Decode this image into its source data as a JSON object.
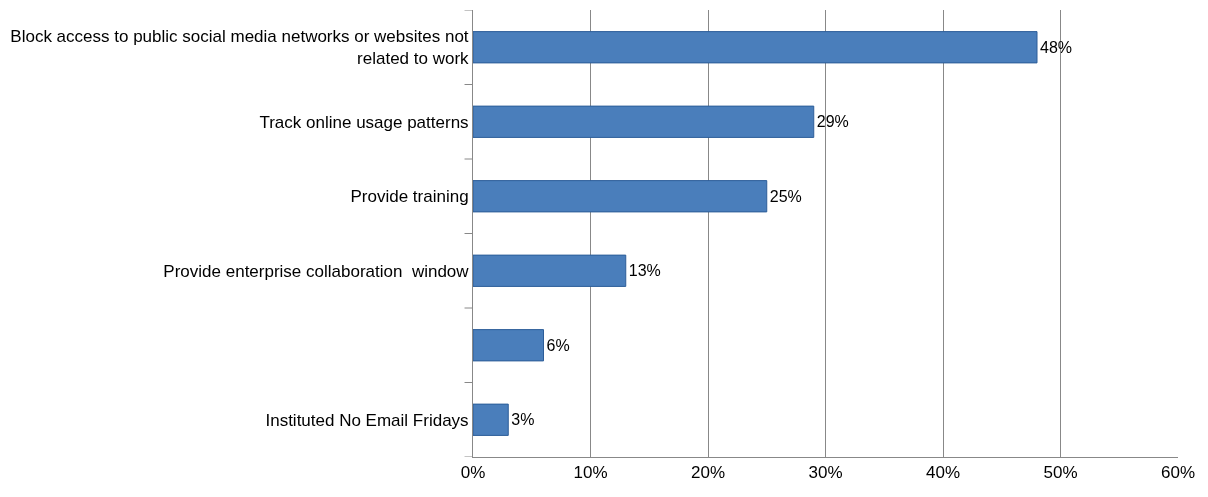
{
  "chart_data": {
    "type": "bar",
    "orientation": "horizontal",
    "categories": [
      "Block access to public social media networks or websites not related to work",
      "Track online usage patterns",
      "Provide training",
      "Provide enterprise collaboration  window",
      null,
      "Instituted No Email Fridays"
    ],
    "values": [
      48,
      29,
      25,
      13,
      6,
      3
    ],
    "value_labels": [
      "48%",
      "29%",
      "25%",
      "13%",
      "6%",
      "3%"
    ],
    "color": "#4a7ebb",
    "xlim": [
      0,
      60
    ],
    "xticks": [
      {
        "value": 0,
        "label": "0%"
      },
      {
        "value": 10,
        "label": "10%"
      },
      {
        "value": 20,
        "label": "20%"
      },
      {
        "value": 30,
        "label": "30%"
      },
      {
        "value": 40,
        "label": "40%"
      },
      {
        "value": 50,
        "label": "50%"
      },
      {
        "value": 60,
        "label": "60%"
      }
    ],
    "grid": "x",
    "legend": false
  }
}
